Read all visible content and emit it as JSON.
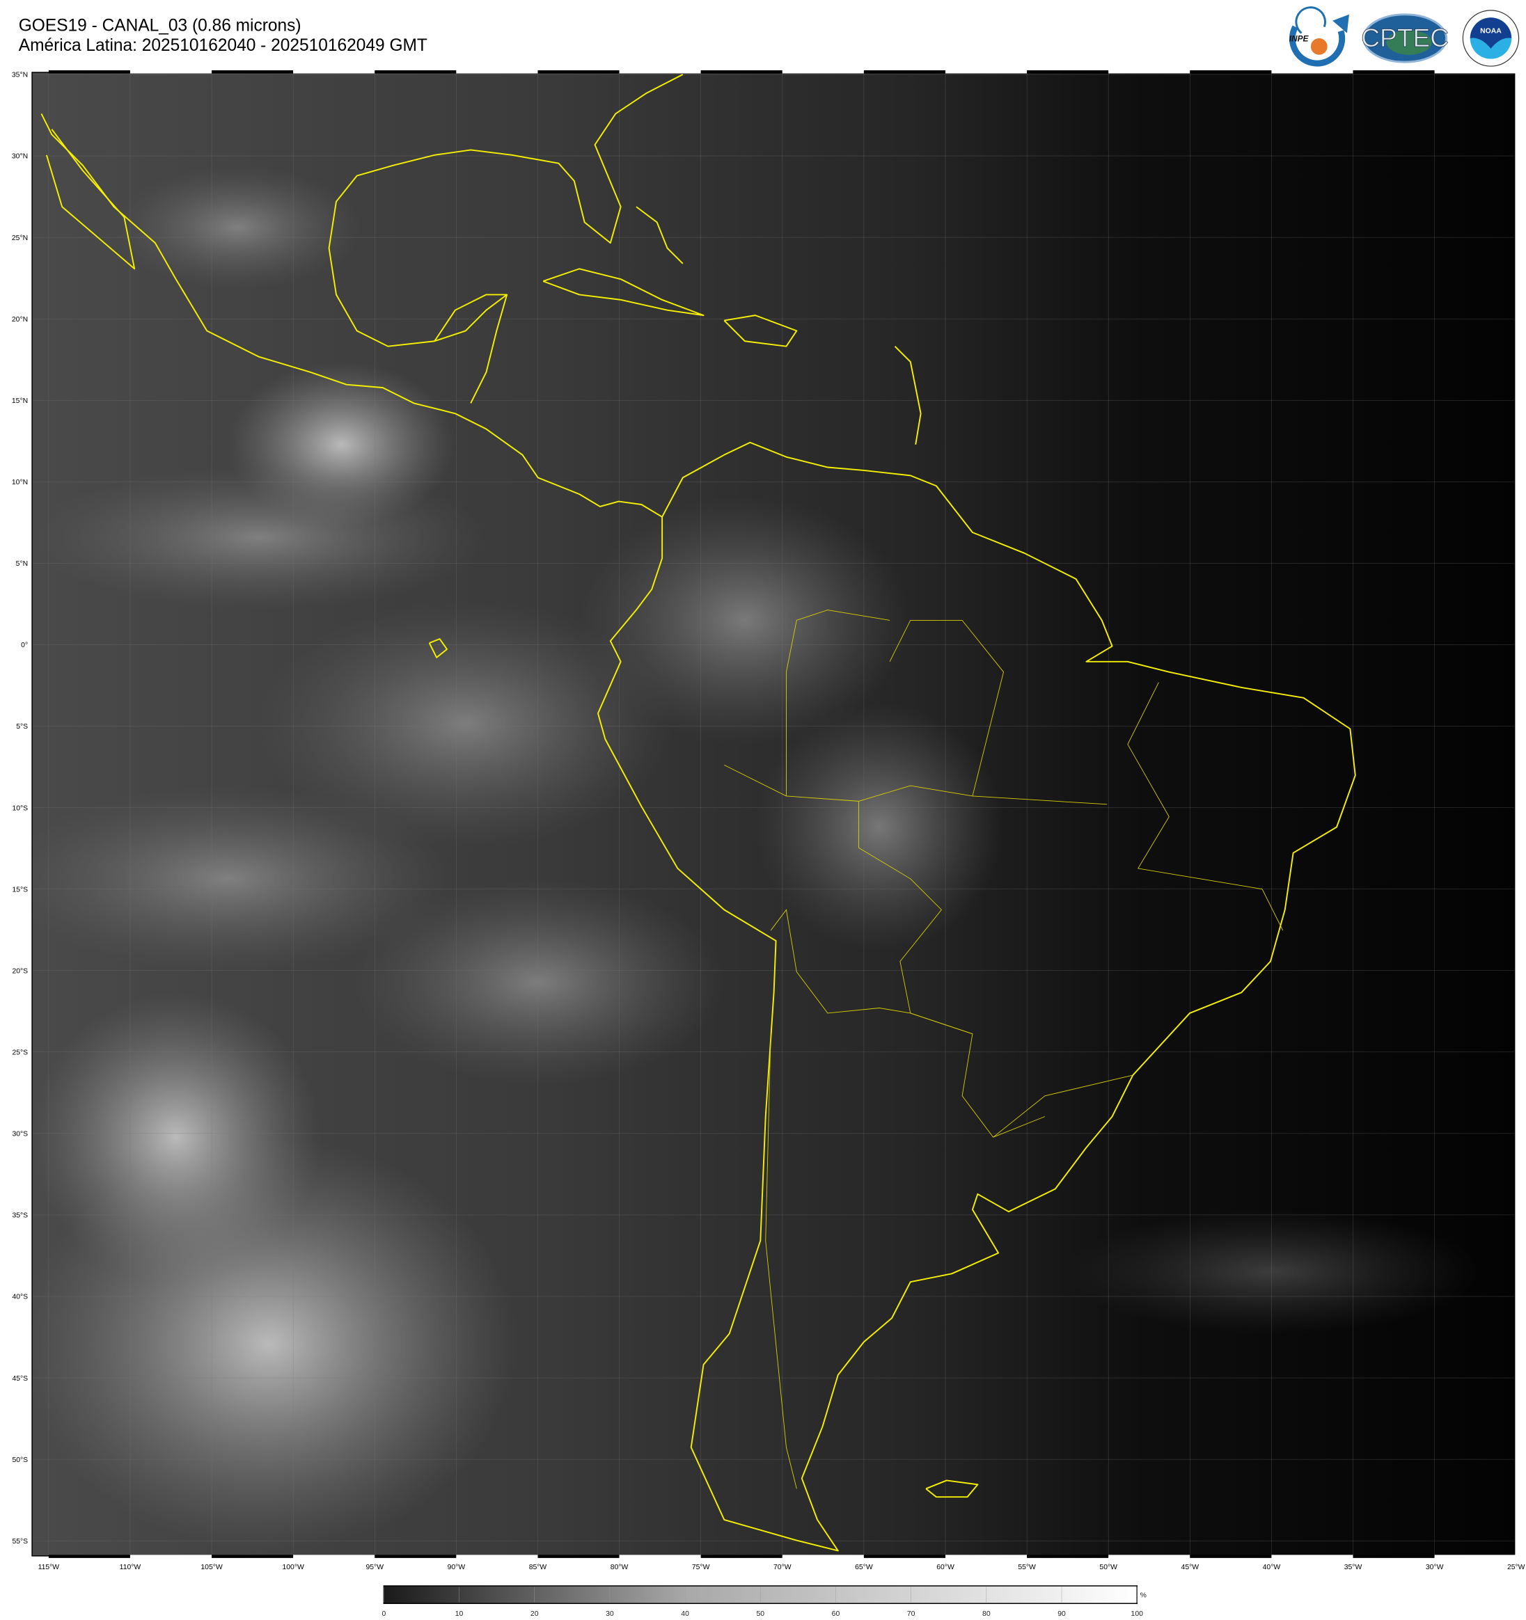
{
  "header": {
    "title_line1": "GOES19 - CANAL_03 (0.86 microns)",
    "title_line2": "América Latina: 202510162040 - 202510162049 GMT"
  },
  "logos": [
    {
      "name": "INPE",
      "text": "INPE",
      "colors": {
        "arrow": "#1f6fb2",
        "dot": "#e8782a"
      }
    },
    {
      "name": "CPTEC",
      "text": "CPTEC"
    },
    {
      "name": "NOAA",
      "text": "NOAA",
      "ring_text": "NATIONAL OCEANIC AND ATMOSPHERIC ADMINISTRATION · U.S. DEPARTMENT OF COMMERCE"
    }
  ],
  "map": {
    "region": "América Latina",
    "coastline_color": "#f6f000",
    "lat_labels": [
      "35°N",
      "30°N",
      "25°N",
      "20°N",
      "15°N",
      "10°N",
      "5°N",
      "0°",
      "5°S",
      "10°S",
      "15°S",
      "20°S",
      "25°S",
      "30°S",
      "35°S",
      "40°S",
      "45°S",
      "50°S",
      "55°S"
    ],
    "lon_labels": [
      "115°W",
      "110°W",
      "105°W",
      "100°W",
      "95°W",
      "90°W",
      "85°W",
      "80°W",
      "75°W",
      "70°W",
      "65°W",
      "60°W",
      "55°W",
      "50°W",
      "45°W",
      "40°W",
      "35°W",
      "30°W",
      "25°W"
    ]
  },
  "colorbar": {
    "unit": "%",
    "range": [
      0,
      100
    ],
    "ticks": [
      "0",
      "10",
      "20",
      "30",
      "40",
      "50",
      "60",
      "70",
      "80",
      "90",
      "100"
    ],
    "color_low": "#1a1a1a",
    "color_high": "#ffffff"
  }
}
